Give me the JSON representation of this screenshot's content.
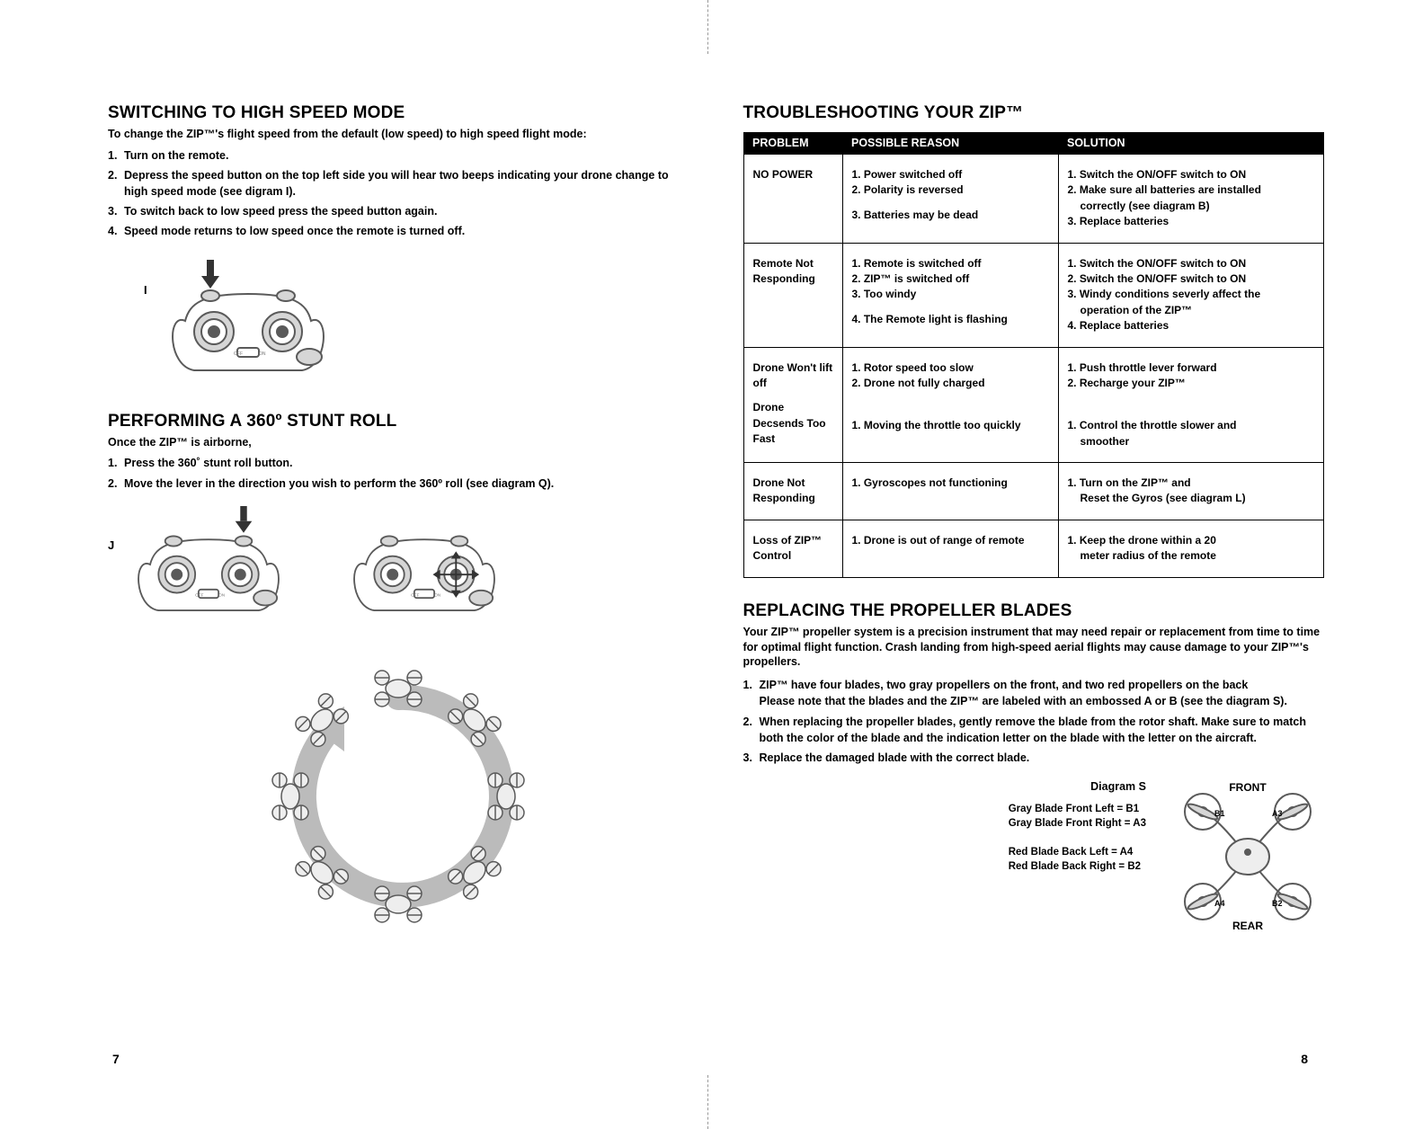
{
  "left": {
    "section1_title": "SWITCHING TO HIGH SPEED MODE",
    "section1_intro": "To change the ZIP™'s flight speed from the default (low speed) to high speed flight mode:",
    "section1_steps": [
      "Turn on the remote.",
      "Depress the speed button on the top left side you will hear two beeps indicating your drone change to high speed mode (see digram I).",
      "To switch back to low speed press the speed button again.",
      "Speed mode returns to low speed once the remote is turned off."
    ],
    "diagramI_label": "I",
    "section2_title": "PERFORMING A 360º STUNT ROLL",
    "section2_intro": "Once the ZIP™ is airborne,",
    "section2_steps": [
      "Press the 360˚ stunt roll button.",
      "Move the lever in the direction you wish to perform the 360º roll (see diagram Q)."
    ],
    "diagramJ_label": "J",
    "page_num": "7"
  },
  "right": {
    "section3_title": "TROUBLESHOOTING YOUR ZIP™",
    "table": {
      "headers": [
        "PROBLEM",
        "POSSIBLE REASON",
        "SOLUTION"
      ],
      "rows": [
        {
          "problem": "NO POWER",
          "reasons": [
            "1. Power switched off",
            "2. Polarity is reversed",
            "",
            "3. Batteries may be dead"
          ],
          "solutions": [
            "1. Switch the ON/OFF switch to ON",
            "2. Make sure all batteries are installed",
            "    correctly (see diagram B)",
            "3. Replace batteries"
          ]
        },
        {
          "problem": "Remote Not Responding",
          "reasons": [
            "1. Remote is switched off",
            "2. ZIP™ is switched off",
            "3. Too windy",
            "",
            "4. The Remote light is flashing"
          ],
          "solutions": [
            "1. Switch the ON/OFF switch to ON",
            "2. Switch the ON/OFF switch to ON",
            "3. Windy conditions severly affect the",
            "    operation of the ZIP™",
            "4. Replace batteries"
          ]
        },
        {
          "problem": "Drone Won't lift off\n\nDrone Decsends Too Fast",
          "reasons": [
            "1. Rotor speed too slow",
            "2. Drone not fully charged",
            "",
            "",
            "",
            "1. Moving the throttle too quickly"
          ],
          "solutions": [
            "1. Push throttle lever forward",
            "2. Recharge your ZIP™",
            "",
            "",
            "",
            "1. Control the throttle slower and",
            "    smoother"
          ]
        },
        {
          "problem": "Drone Not Responding",
          "reasons": [
            "1. Gyroscopes not functioning"
          ],
          "solutions": [
            "1. Turn on the ZIP™ and",
            "    Reset the Gyros (see diagram L)"
          ]
        },
        {
          "problem": "Loss of ZIP™ Control",
          "reasons": [
            "1. Drone is out of range of remote"
          ],
          "solutions": [
            "1. Keep the drone within a 20",
            "    meter radius of the remote"
          ]
        }
      ]
    },
    "section4_title": "REPLACING THE PROPELLER BLADES",
    "section4_desc": "Your ZIP™ propeller system is a precision instrument that may need repair or replacement from time to time for optimal flight function. Crash landing from high-speed aerial flights may cause damage to your ZIP™'s propellers.",
    "section4_steps": [
      "ZIP™ have four blades, two gray propellers on the front, and two red propellers on the back|Please note that the blades and the ZIP™ are labeled with an embossed A or B (see the diagram S).",
      "When replacing the propeller blades, gently remove the blade from the rotor shaft. Make sure to match both the color of the blade and the indication letter on the blade with the letter on the aircraft.",
      "Replace the damaged blade with the correct blade."
    ],
    "diagramS": {
      "title": "Diagram S",
      "front": "FRONT",
      "rear": "REAR",
      "lines": [
        "Gray Blade Front Left = B1",
        "Gray Blade Front Right = A3",
        "",
        "Red Blade Back Left = A4",
        "Red Blade Back Right = B2"
      ],
      "node_labels": [
        "B1",
        "A3",
        "A4",
        "B2"
      ]
    },
    "page_num": "8"
  },
  "colors": {
    "text": "#000000",
    "bg": "#ffffff",
    "table_header_bg": "#000000",
    "table_header_fg": "#ffffff",
    "diagram_stroke": "#5a5a5a",
    "diagram_fill": "#d6d6d6",
    "arrow_fill": "#333333"
  }
}
